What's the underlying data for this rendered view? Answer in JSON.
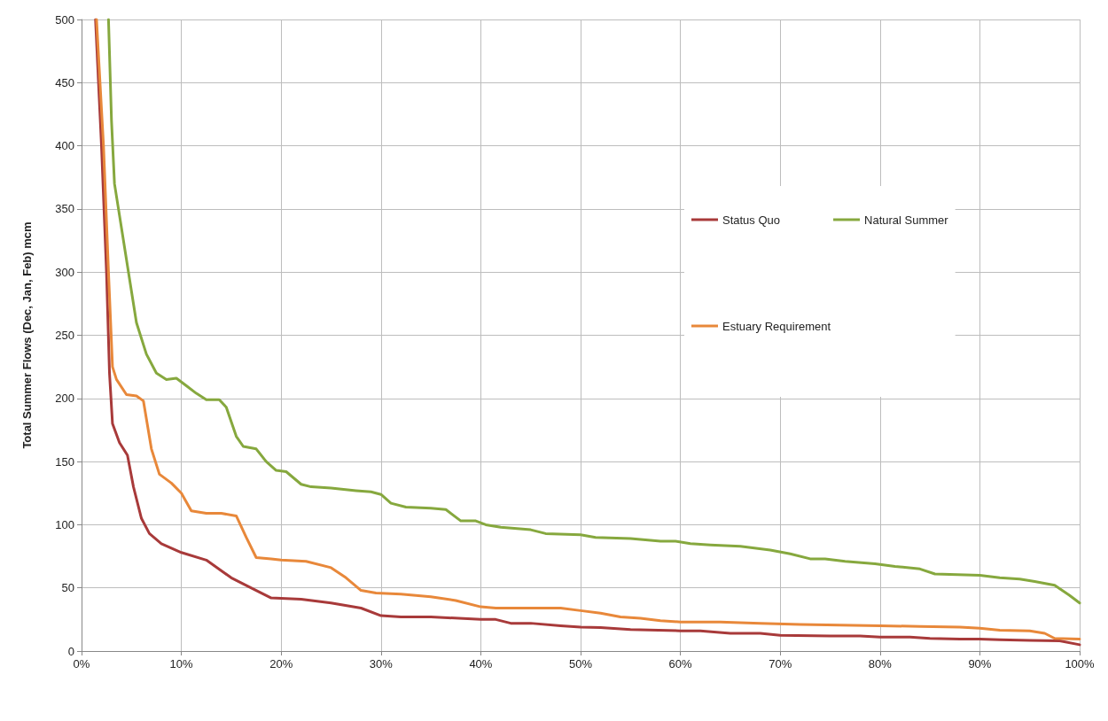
{
  "chart_data": {
    "type": "line",
    "ylabel": "Total Summer Flows (Dec, Jan, Feb) mcm",
    "xlim": [
      0,
      100
    ],
    "xticks": [
      {
        "value": 0,
        "label": "0%"
      },
      {
        "value": 10,
        "label": "10%"
      },
      {
        "value": 20,
        "label": "20%"
      },
      {
        "value": 30,
        "label": "30%"
      },
      {
        "value": 40,
        "label": "40%"
      },
      {
        "value": 50,
        "label": "50%"
      },
      {
        "value": 60,
        "label": "60%"
      },
      {
        "value": 70,
        "label": "70%"
      },
      {
        "value": 80,
        "label": "80%"
      },
      {
        "value": 90,
        "label": "90%"
      },
      {
        "value": 100,
        "label": "100%"
      }
    ],
    "ylim": [
      0,
      500
    ],
    "yticks": [
      0,
      50,
      100,
      150,
      200,
      250,
      300,
      350,
      400,
      450,
      500
    ],
    "grid": true,
    "legend": "right",
    "series": [
      {
        "name": "Status Quo",
        "color": "#a83a3a",
        "x": [
          1.4,
          2.0,
          2.5,
          2.8,
          3.1,
          3.8,
          4.6,
          5.2,
          6,
          6.8,
          8,
          10,
          12.5,
          15,
          17.5,
          19,
          22,
          25,
          28,
          30,
          32,
          35,
          40,
          41.5,
          43,
          45,
          48,
          50,
          52,
          55,
          60,
          62,
          65,
          68,
          70,
          75,
          78,
          80,
          83,
          85,
          88,
          90,
          92,
          95,
          98,
          100
        ],
        "values": [
          500,
          400,
          300,
          220,
          180,
          165,
          155,
          130,
          105,
          93,
          85,
          78,
          72,
          58,
          48,
          42,
          41,
          38,
          34,
          28,
          27,
          27,
          25,
          25,
          22,
          22,
          20,
          19,
          18.5,
          17,
          16,
          16,
          14,
          14,
          12.5,
          12,
          12,
          11,
          11,
          10,
          9.5,
          9.5,
          9,
          8.5,
          8,
          5
        ]
      },
      {
        "name": "Natural Summer",
        "color": "#86a83e",
        "x": [
          2.7,
          3.0,
          3.3,
          4.5,
          5.5,
          6.5,
          7.5,
          8.5,
          9.5,
          10.5,
          11.5,
          12.5,
          13.8,
          14.5,
          15.5,
          16.2,
          17.5,
          18.5,
          19.5,
          20.5,
          22,
          23,
          25,
          27.5,
          29,
          30,
          31,
          32.5,
          35,
          36.5,
          38,
          39.5,
          40.5,
          42,
          45,
          46.5,
          50,
          51.5,
          55,
          58,
          59.5,
          61,
          63,
          66,
          69,
          71,
          73,
          74.5,
          76.5,
          79.5,
          81.5,
          84,
          85.5,
          90,
          92,
          94,
          95.5,
          97.5,
          99,
          100
        ],
        "values": [
          500,
          420,
          370,
          310,
          260,
          235,
          220,
          215,
          216,
          210,
          204,
          199,
          199,
          193,
          170,
          162,
          160,
          150,
          143,
          142,
          132,
          130,
          129,
          127,
          126,
          124,
          117,
          114,
          113,
          112,
          103,
          103,
          100,
          98,
          96,
          93,
          92,
          90,
          89,
          87,
          87,
          85,
          84,
          83,
          80,
          77,
          73,
          73,
          71,
          69,
          67,
          65,
          61,
          60,
          58,
          57,
          55,
          52,
          44,
          38
        ]
      },
      {
        "name": "Estuary Requirement",
        "color": "#e8883a",
        "x": [
          1.5,
          2.2,
          2.7,
          3.1,
          3.5,
          4.5,
          5.5,
          6.2,
          7,
          7.8,
          9,
          10,
          11,
          12.5,
          14,
          15.5,
          16.5,
          17.5,
          19,
          20,
          22.5,
          25,
          26.5,
          28,
          29.5,
          32,
          35,
          37.5,
          40,
          41.5,
          45,
          48,
          50,
          52,
          54,
          56,
          58,
          60,
          64,
          68,
          72,
          76,
          80,
          84,
          88,
          90,
          92,
          95,
          96.5,
          97.5,
          100
        ],
        "values": [
          500,
          400,
          300,
          225,
          215,
          203,
          202,
          198,
          160,
          140,
          133,
          125,
          111,
          109,
          109,
          107,
          90,
          74,
          73,
          72,
          71,
          66,
          58,
          48,
          46,
          45,
          43,
          40,
          35,
          34,
          34,
          34,
          32,
          30,
          27,
          26,
          24,
          23,
          23,
          22,
          21,
          20.5,
          20,
          19.5,
          19,
          18,
          16.5,
          16,
          14,
          10,
          9.5
        ]
      }
    ]
  }
}
